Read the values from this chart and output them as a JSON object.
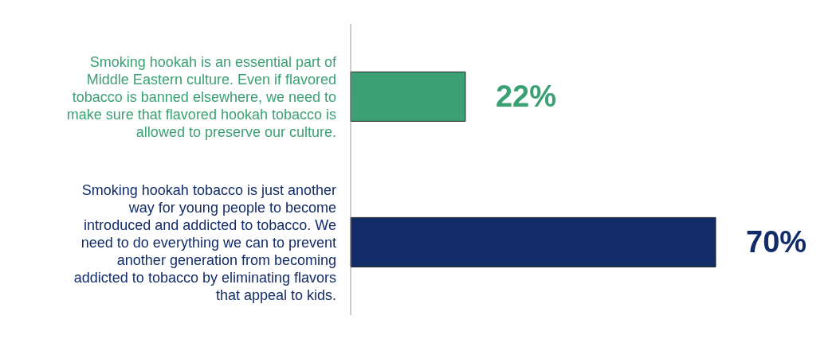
{
  "chart_data": {
    "type": "bar",
    "orientation": "horizontal",
    "categories": [
      "Smoking hookah is an essential part of Middle Eastern culture. Even if flavored tobacco is banned elsewhere, we need to make sure that flavored hookah tobacco is allowed to preserve our culture.",
      "Smoking hookah tobacco is just another way for young people to become introduced and addicted to tobacco. We need to do everything we can to prevent another generation from becoming addicted to tobacco by eliminating flavors that appeal to kids."
    ],
    "values": [
      22,
      70
    ],
    "colors": [
      "#3ba074",
      "#122c6a"
    ],
    "value_labels": [
      "22%",
      "70%"
    ]
  }
}
